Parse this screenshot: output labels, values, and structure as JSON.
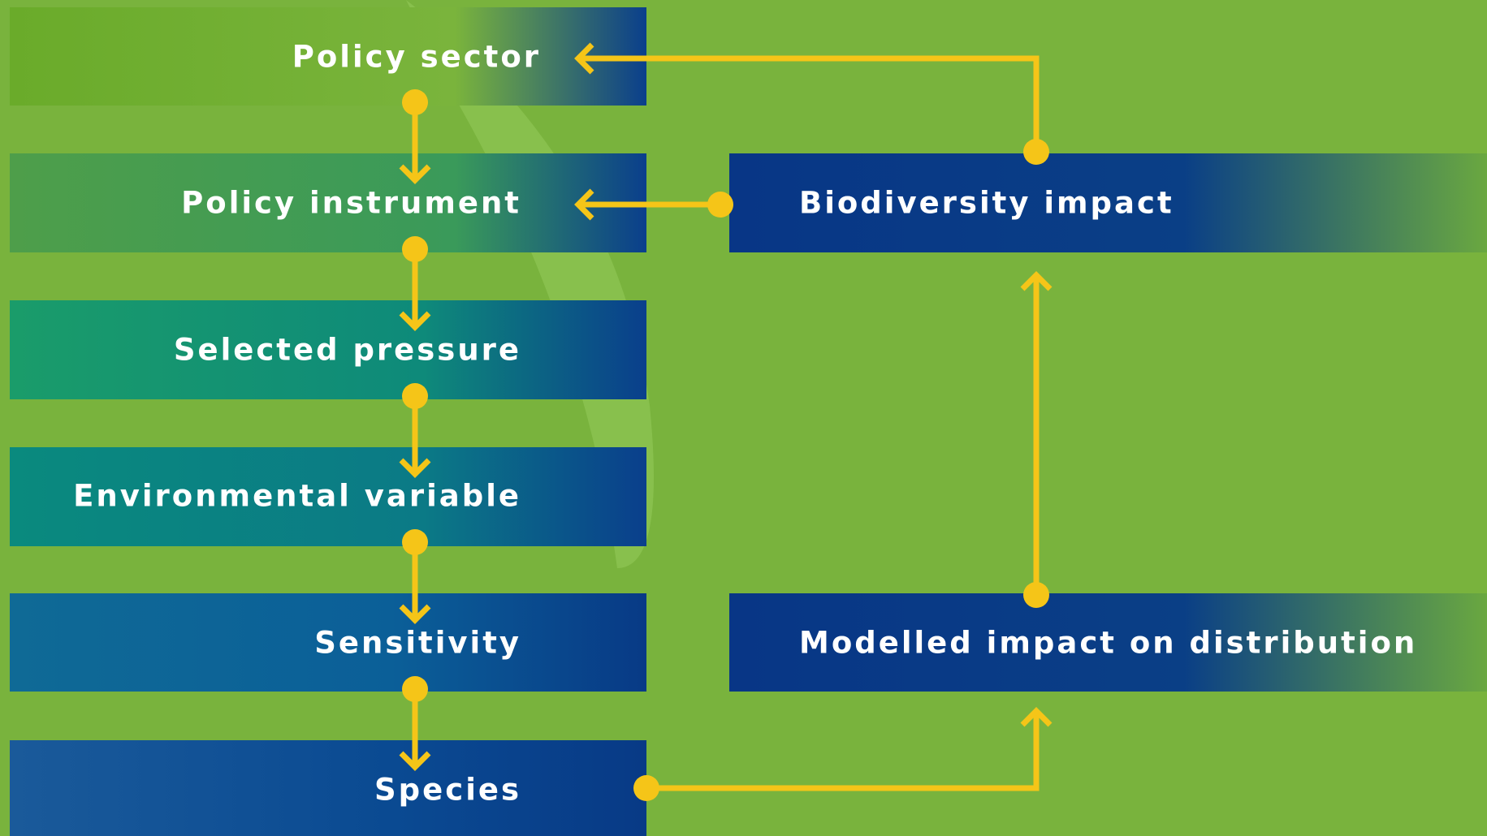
{
  "nodes": [
    {
      "label": "Policy sector"
    },
    {
      "label": "Policy instrument"
    },
    {
      "label": "Selected pressure"
    },
    {
      "label": "Environmental variable"
    },
    {
      "label": "Sensitivity"
    },
    {
      "label": "Species"
    },
    {
      "label": "Biodiversity impact"
    },
    {
      "label": "Modelled impact on distribution"
    }
  ]
}
